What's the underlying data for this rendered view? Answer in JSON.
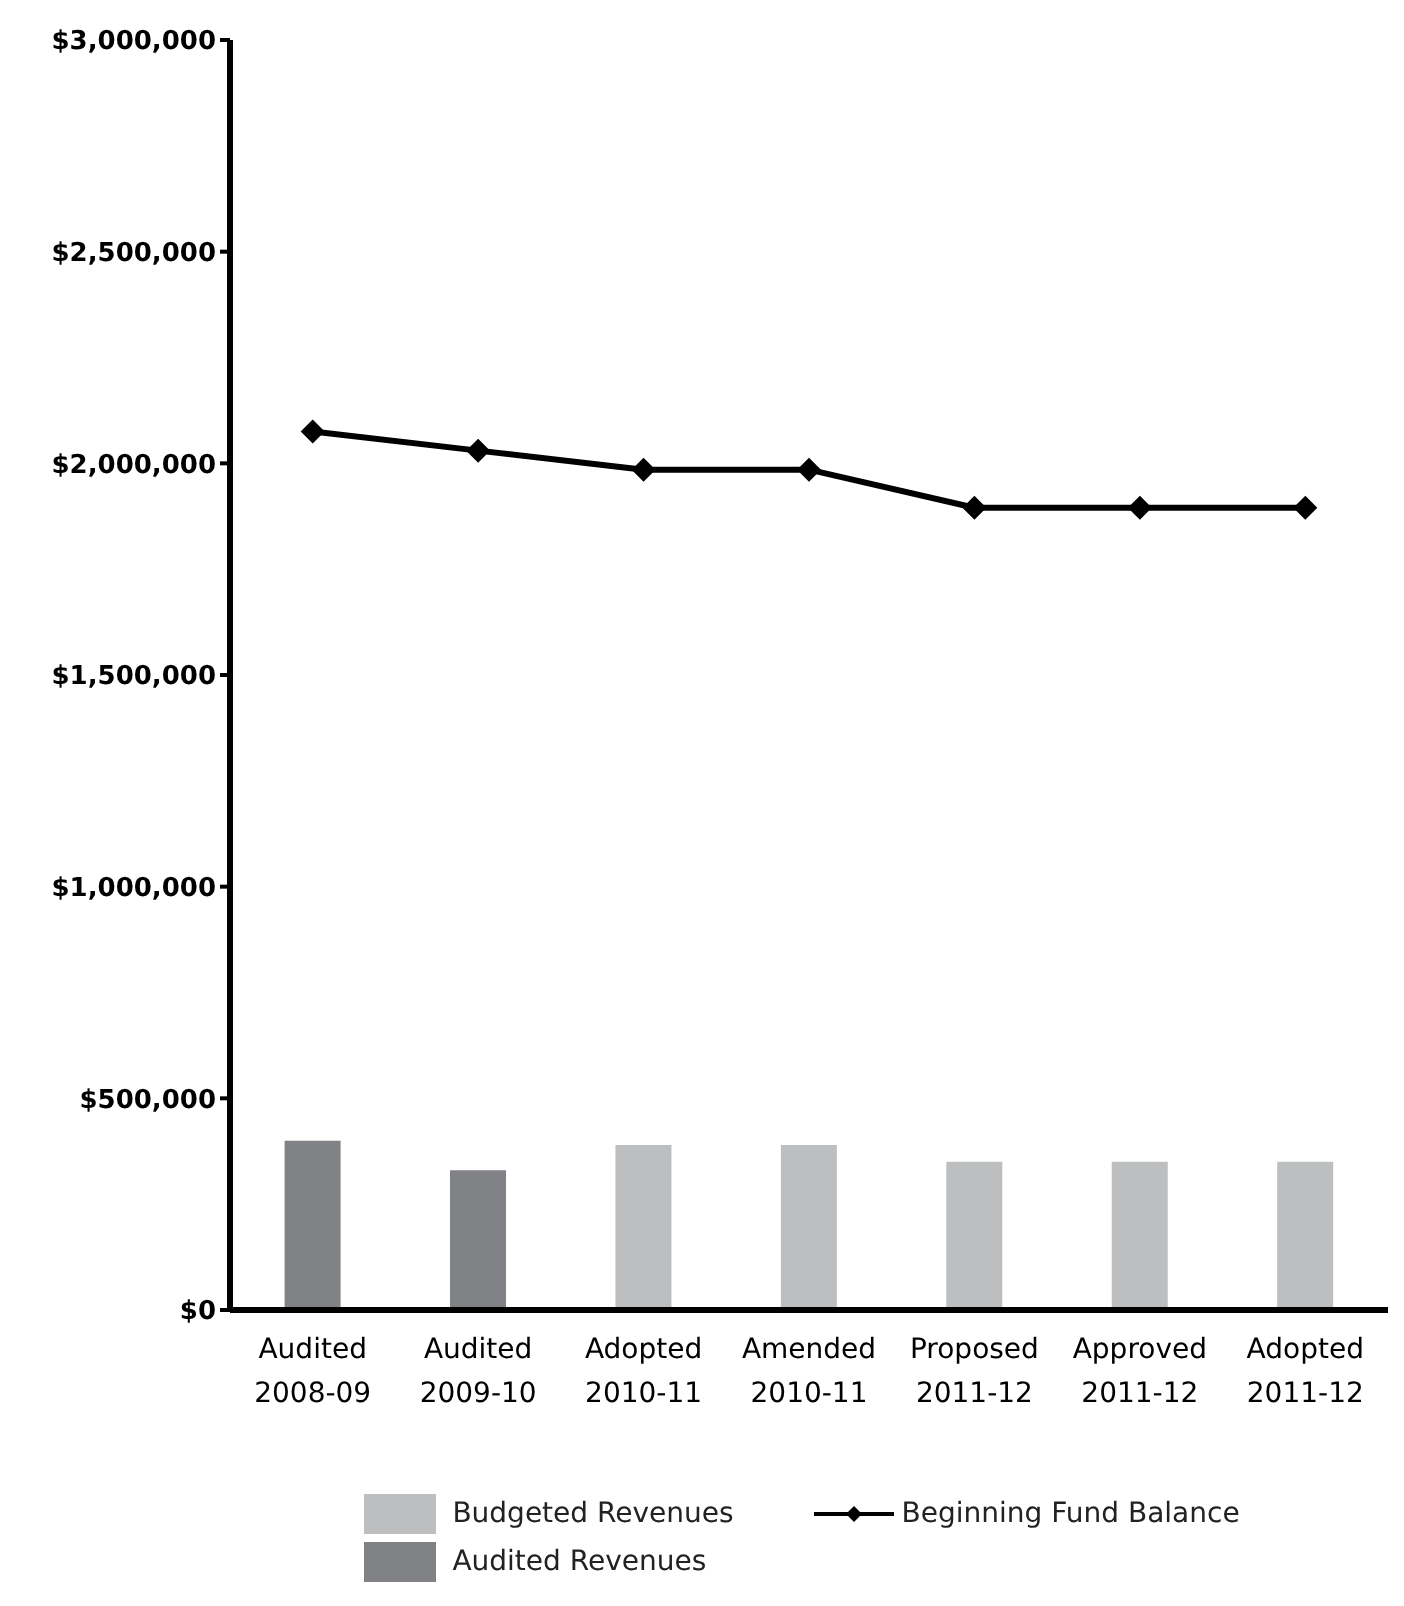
{
  "chart_data": {
    "type": "bar",
    "stacked": true,
    "categories": [
      "Audited 2008-09",
      "Audited 2009-10",
      "Adopted 2010-11",
      "Amended 2010-11",
      "Proposed 2011-12",
      "Approved 2011-12",
      "Adopted 2011-12"
    ],
    "series": [
      {
        "name": "Budgeted Revenues",
        "color": "#bdbec0",
        "values": [
          null,
          null,
          390000,
          390000,
          350000,
          350000,
          350000
        ]
      },
      {
        "name": "Audited Revenues",
        "color": "#808285",
        "values": [
          400000,
          330000,
          null,
          null,
          null,
          null,
          null
        ]
      },
      {
        "name": "Beginning Fund Balance",
        "type": "line",
        "color": "#000000",
        "marker": "diamond",
        "values": [
          2075000,
          2030000,
          1985000,
          1985000,
          1895000,
          1895000,
          1895000
        ]
      }
    ],
    "ylim": [
      0,
      3000000
    ],
    "yticks": [
      {
        "value": 0,
        "label": "$0"
      },
      {
        "value": 500000,
        "label": "$500,000"
      },
      {
        "value": 1000000,
        "label": "$1,000,000"
      },
      {
        "value": 1500000,
        "label": "$1,500,000"
      },
      {
        "value": 2000000,
        "label": "$2,000,000"
      },
      {
        "value": 2500000,
        "label": "$2,500,000"
      },
      {
        "value": 3000000,
        "label": "$3,000,000"
      }
    ],
    "grid": false,
    "legend": "bottom"
  }
}
